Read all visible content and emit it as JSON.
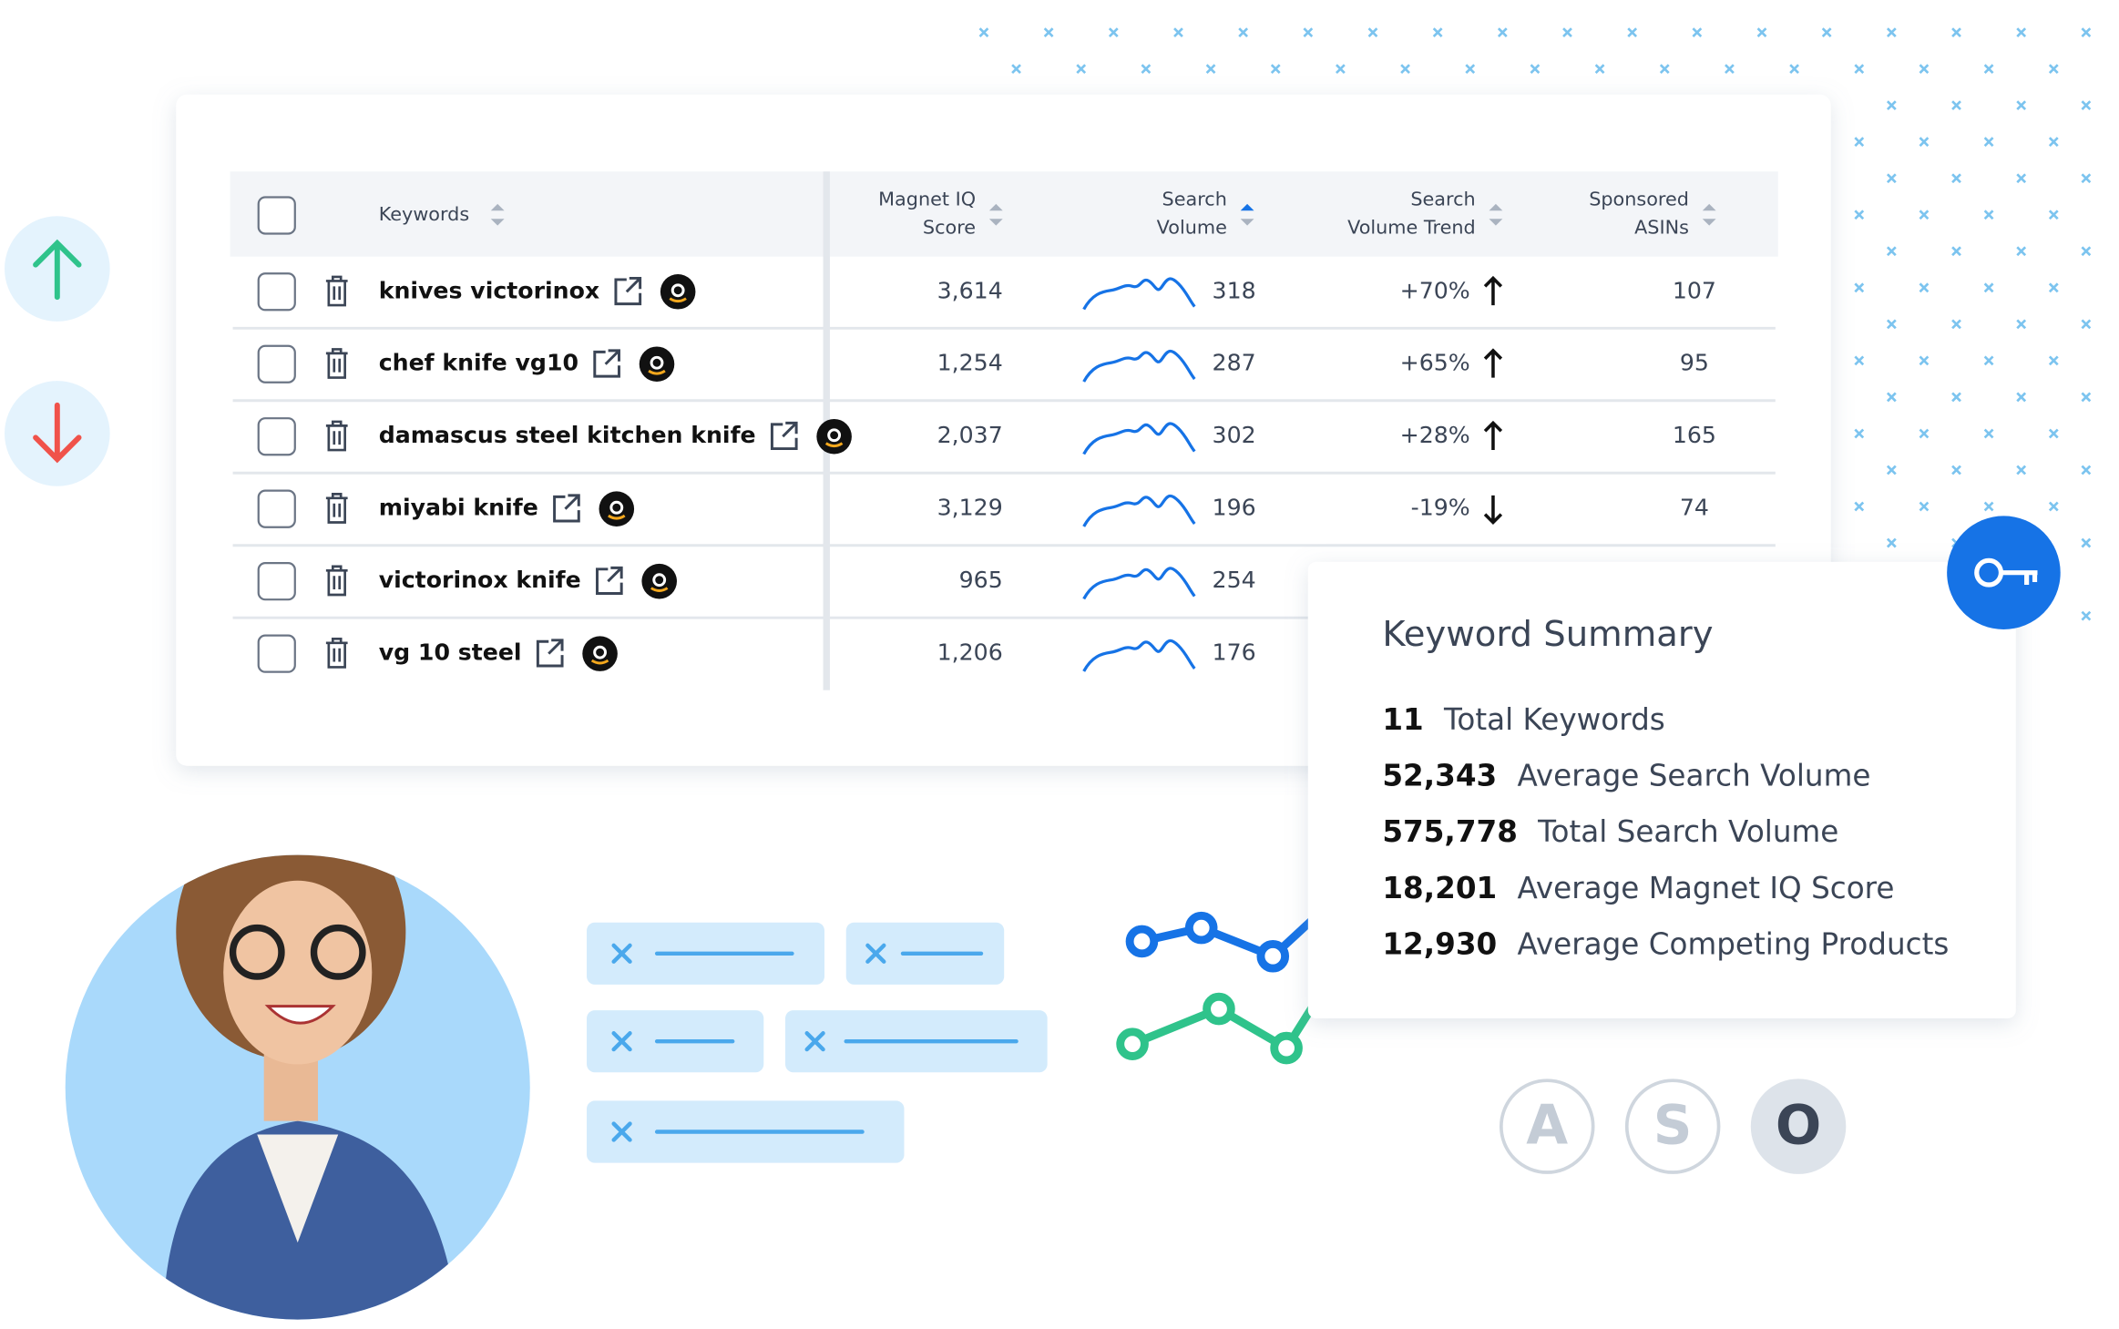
{
  "table": {
    "headers": {
      "keywords": "Keywords",
      "magnet_iq": [
        "Magnet IQ",
        "Score"
      ],
      "search_volume": [
        "Search",
        "Volume"
      ],
      "trend": [
        "Search",
        "Volume Trend"
      ],
      "asins": [
        "Sponsored",
        "ASINs"
      ]
    },
    "rows": [
      {
        "keyword": "knives victorinox",
        "magnet_iq": "3,614",
        "search_volume": "318",
        "trend": "+70%",
        "asins": "107"
      },
      {
        "keyword": "chef knife vg10",
        "magnet_iq": "1,254",
        "search_volume": "287",
        "trend": "+65%",
        "asins": "95"
      },
      {
        "keyword": "damascus steel kitchen knife",
        "magnet_iq": "2,037",
        "search_volume": "302",
        "trend": "+28%",
        "asins": "165"
      },
      {
        "keyword": "miyabi knife",
        "magnet_iq": "3,129",
        "search_volume": "196",
        "trend": "-19%",
        "asins": "74"
      },
      {
        "keyword": "victorinox knife",
        "magnet_iq": "965",
        "search_volume": "254"
      },
      {
        "keyword": "vg 10 steel",
        "magnet_iq": "1,206",
        "search_volume": "176"
      }
    ]
  },
  "summary": {
    "title": "Keyword Summary",
    "items": [
      {
        "value": "11",
        "label": "Total Keywords"
      },
      {
        "value": "52,343",
        "label": "Average Search Volume"
      },
      {
        "value": "575,778",
        "label": "Total Search Volume"
      },
      {
        "value": "18,201",
        "label": "Average Magnet IQ Score"
      },
      {
        "value": "12,930",
        "label": "Average Competing Products"
      }
    ]
  },
  "aso": [
    "A",
    "S",
    "O"
  ]
}
